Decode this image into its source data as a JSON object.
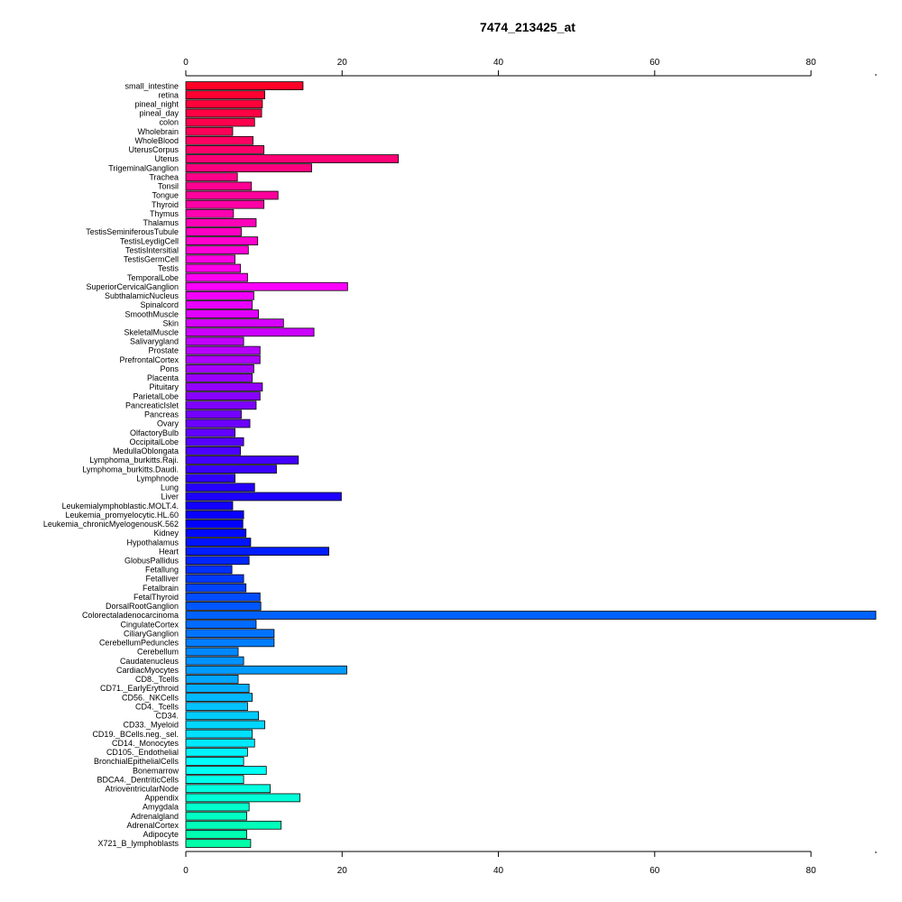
{
  "chart_data": {
    "type": "bar",
    "orientation": "horizontal",
    "title": "7474_213425_at",
    "xlabel": "",
    "ylabel": "",
    "xlim": [
      0,
      88.3
    ],
    "xticks": [
      "0",
      "20",
      "40",
      "60",
      "80"
    ],
    "grid": false,
    "legend": "none",
    "categories": [
      "small_intestine",
      "retina",
      "pineal_night",
      "pineal_day",
      "colon",
      "Wholebrain",
      "WholeBlood",
      "UterusCorpus",
      "Uterus",
      "TrigeminalGanglion",
      "Trachea",
      "Tonsil",
      "Tongue",
      "Thyroid",
      "Thymus",
      "Thalamus",
      "TestisSeminiferousTubule",
      "TestisLeydigCell",
      "TestisIntersitial",
      "TestisGermCell",
      "Testis",
      "TemporalLobe",
      "SuperiorCervicalGanglion",
      "SubthalamicNucleus",
      "Spinalcord",
      "SmoothMuscle",
      "Skin",
      "SkeletalMuscle",
      "Salivarygland",
      "Prostate",
      "PrefrontalCortex",
      "Pons",
      "Placenta",
      "Pituitary",
      "ParietalLobe",
      "PancreaticIslet",
      "Pancreas",
      "Ovary",
      "OlfactoryBulb",
      "OccipitalLobe",
      "MedullaOblongata",
      "Lymphoma_burkitts.Raji.",
      "Lymphoma_burkitts.Daudi.",
      "Lymphnode",
      "Lung",
      "Liver",
      "Leukemialymphoblastic.MOLT.4.",
      "Leukemia_promyelocytic.HL.60",
      "Leukemia_chronicMyelogenousK.562",
      "Kidney",
      "Hypothalamus",
      "Heart",
      "GlobusPallidus",
      "Fetallung",
      "Fetalliver",
      "Fetalbrain",
      "FetalThyroid",
      "DorsalRootGanglion",
      "Colorectaladenocarcinoma",
      "CingulateCortex",
      "CiliaryGanglion",
      "CerebellumPeduncles",
      "Cerebellum",
      "Caudatenucleus",
      "CardiacMyocytes",
      "CD8._Tcells",
      "CD71._EarlyErythroid",
      "CD56._NKCells",
      "CD4._Tcells",
      "CD34.",
      "CD33._Myeloid",
      "CD19._BCells.neg._sel.",
      "CD14._Monocytes",
      "CD105._Endothelial",
      "BronchialEpithelialCells",
      "Bonemarrow",
      "BDCA4._DentriticCells",
      "AtrioventricularNode",
      "Appendix",
      "Amygdala",
      "Adrenalgland",
      "AdrenalCortex",
      "Adipocyte",
      "X721_B_lymphoblasts"
    ],
    "values": [
      15.0,
      10.1,
      9.8,
      9.7,
      8.8,
      6.0,
      8.6,
      10.0,
      27.2,
      16.1,
      6.6,
      8.4,
      11.8,
      10.0,
      6.1,
      9.0,
      7.1,
      9.2,
      8.0,
      6.3,
      7.0,
      7.9,
      20.7,
      8.7,
      8.5,
      9.3,
      12.5,
      16.4,
      7.4,
      9.5,
      9.5,
      8.7,
      8.5,
      9.8,
      9.5,
      9.0,
      7.1,
      8.2,
      6.3,
      7.4,
      7.0,
      14.4,
      11.6,
      6.3,
      8.8,
      19.9,
      6.0,
      7.4,
      7.3,
      7.7,
      8.3,
      18.3,
      8.1,
      5.9,
      7.4,
      7.7,
      9.5,
      9.6,
      88.3,
      9.0,
      11.3,
      11.3,
      6.7,
      7.4,
      20.6,
      6.7,
      8.1,
      8.5,
      7.9,
      9.3,
      10.1,
      8.5,
      8.8,
      7.9,
      7.4,
      10.3,
      7.4,
      10.8,
      14.6,
      8.1,
      7.8,
      12.2,
      7.8,
      8.3
    ],
    "colors": [
      "#ff0027",
      "#ff0031",
      "#ff003b",
      "#ff0044",
      "#ff004e",
      "#ff0058",
      "#ff0062",
      "#ff006b",
      "#ff0075",
      "#ff007f",
      "#ff0089",
      "#ff0092",
      "#ff009c",
      "#ff00a6",
      "#ff00b0",
      "#ff00b9",
      "#ff00c3",
      "#ff00cd",
      "#ff00d7",
      "#ff00e0",
      "#ff00ea",
      "#ff00f4",
      "#fd00ff",
      "#f300ff",
      "#e900ff",
      "#e000ff",
      "#d600ff",
      "#cc00ff",
      "#c200ff",
      "#b900ff",
      "#af00ff",
      "#a500ff",
      "#9b00ff",
      "#9200ff",
      "#8800ff",
      "#7e00ff",
      "#7400ff",
      "#6b00ff",
      "#6100ff",
      "#5700ff",
      "#4d00ff",
      "#4400ff",
      "#3a00ff",
      "#3000ff",
      "#2600ff",
      "#1d00ff",
      "#1300ff",
      "#0900ff",
      "#0000ff",
      "#0009ff",
      "#0013ff",
      "#001dff",
      "#0026ff",
      "#0030ff",
      "#003aff",
      "#0044ff",
      "#004dff",
      "#0057ff",
      "#0061ff",
      "#006bff",
      "#0074ff",
      "#007eff",
      "#0088ff",
      "#0092ff",
      "#009bff",
      "#00a5ff",
      "#00afff",
      "#00b9ff",
      "#00c2ff",
      "#00ccff",
      "#00d6ff",
      "#00e0ff",
      "#00e9ff",
      "#00f3ff",
      "#00fdff",
      "#00fff4",
      "#00ffea",
      "#00ffe0",
      "#00ffd7",
      "#00ffcd",
      "#00ffc3",
      "#00ffb9",
      "#00ffb0",
      "#00ffa6"
    ]
  }
}
